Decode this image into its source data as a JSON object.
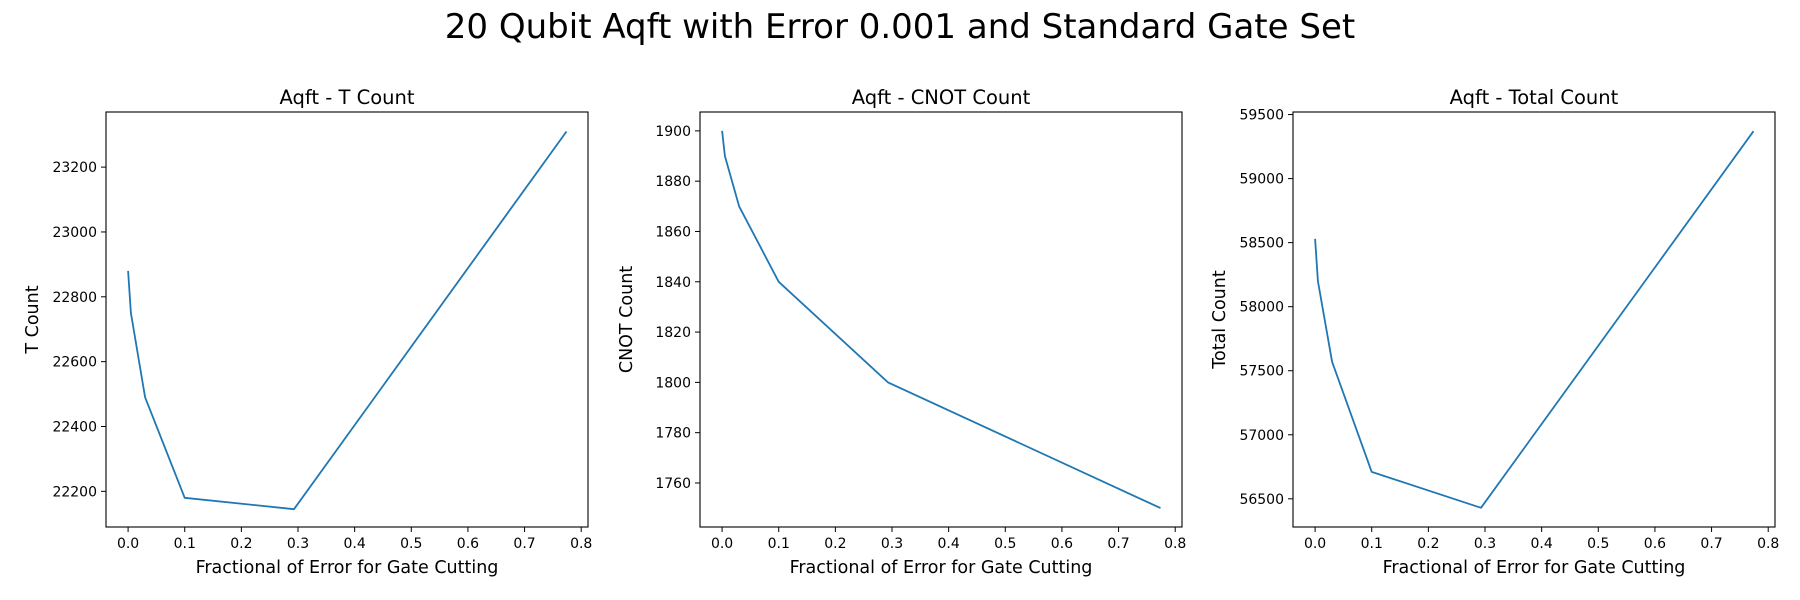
{
  "figure": {
    "title": "20 Qubit Aqft with Error 0.001 and Standard Gate Set"
  },
  "colors": {
    "line": "#1f77b4"
  },
  "chart_data": [
    {
      "type": "line",
      "title": "Aqft - T Count",
      "xlabel": "Fractional of Error for Gate Cutting",
      "ylabel": "T Count",
      "xlim": [
        -0.039,
        0.812
      ],
      "ylim": [
        22090,
        23370
      ],
      "xticks": [
        0.0,
        0.1,
        0.2,
        0.3,
        0.4,
        0.5,
        0.6,
        0.7,
        0.8
      ],
      "xtick_labels": [
        "0.0",
        "0.1",
        "0.2",
        "0.3",
        "0.4",
        "0.5",
        "0.6",
        "0.7",
        "0.8"
      ],
      "yticks": [
        22200,
        22400,
        22600,
        22800,
        23000,
        23200
      ],
      "ytick_labels": [
        "22200",
        "22400",
        "22600",
        "22800",
        "23000",
        "23200"
      ],
      "series": [
        {
          "x": [
            0.0,
            0.005,
            0.03,
            0.1,
            0.293,
            0.774
          ],
          "y": [
            22880,
            22750,
            22490,
            22180,
            22145,
            23310
          ]
        }
      ]
    },
    {
      "type": "line",
      "title": "Aqft - CNOT Count",
      "xlabel": "Fractional of Error for Gate Cutting",
      "ylabel": "CNOT Count",
      "xlim": [
        -0.039,
        0.812
      ],
      "ylim": [
        1742.5,
        1907.5
      ],
      "xticks": [
        0.0,
        0.1,
        0.2,
        0.3,
        0.4,
        0.5,
        0.6,
        0.7,
        0.8
      ],
      "xtick_labels": [
        "0.0",
        "0.1",
        "0.2",
        "0.3",
        "0.4",
        "0.5",
        "0.6",
        "0.7",
        "0.8"
      ],
      "yticks": [
        1760,
        1780,
        1800,
        1820,
        1840,
        1860,
        1880,
        1900
      ],
      "ytick_labels": [
        "1760",
        "1780",
        "1800",
        "1820",
        "1840",
        "1860",
        "1880",
        "1900"
      ],
      "series": [
        {
          "x": [
            0.0,
            0.005,
            0.03,
            0.1,
            0.293,
            0.774
          ],
          "y": [
            1900,
            1890,
            1870,
            1840,
            1800,
            1750
          ]
        }
      ]
    },
    {
      "type": "line",
      "title": "Aqft - Total Count",
      "xlabel": "Fractional of Error for Gate Cutting",
      "ylabel": "Total Count",
      "xlim": [
        -0.039,
        0.812
      ],
      "ylim": [
        56280,
        59520
      ],
      "xticks": [
        0.0,
        0.1,
        0.2,
        0.3,
        0.4,
        0.5,
        0.6,
        0.7,
        0.8
      ],
      "xtick_labels": [
        "0.0",
        "0.1",
        "0.2",
        "0.3",
        "0.4",
        "0.5",
        "0.6",
        "0.7",
        "0.8"
      ],
      "yticks": [
        56500,
        57000,
        57500,
        58000,
        58500,
        59000,
        59500
      ],
      "ytick_labels": [
        "56500",
        "57000",
        "57500",
        "58000",
        "58500",
        "59000",
        "59500"
      ],
      "series": [
        {
          "x": [
            0.0,
            0.005,
            0.03,
            0.1,
            0.293,
            0.774
          ],
          "y": [
            58530,
            58200,
            57570,
            56710,
            56430,
            59370
          ]
        }
      ]
    }
  ]
}
